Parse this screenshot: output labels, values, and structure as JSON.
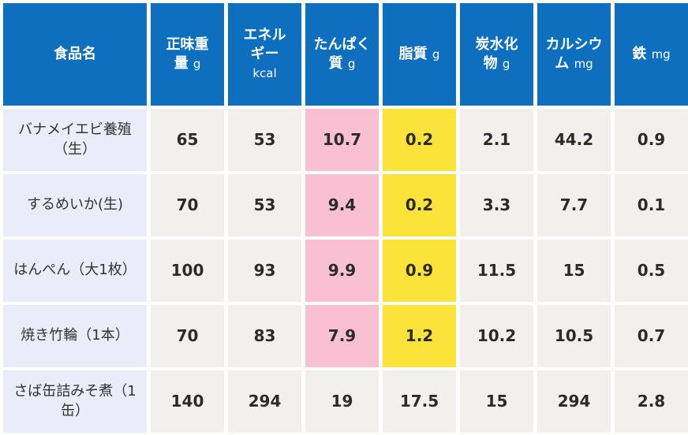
{
  "headers": [
    {
      "main": "食品名",
      "unit": ""
    },
    {
      "main": "正味重量",
      "unit": "g"
    },
    {
      "main": "エネルギー",
      "unit": "kcal"
    },
    {
      "main": "たんぱく質",
      "unit": "g"
    },
    {
      "main": "脂質",
      "unit": "g"
    },
    {
      "main": "炭水化物",
      "unit": "g"
    },
    {
      "main": "カルシウム",
      "unit": "mg"
    },
    {
      "main": "鉄",
      "unit": "mg"
    }
  ],
  "rows": [
    {
      "name": "バナメイエビ養殖（生）",
      "values": [
        "65",
        "53",
        "10.7",
        "0.2",
        "2.1",
        "44.2",
        "0.9"
      ]
    },
    {
      "name": "するめいか(生)",
      "values": [
        "70",
        "53",
        "9.4",
        "0.2",
        "3.3",
        "7.7",
        "0.1"
      ]
    },
    {
      "name": "はんぺん（大1枚）",
      "values": [
        "100",
        "93",
        "9.9",
        "0.9",
        "11.5",
        "15",
        "0.5"
      ]
    },
    {
      "name": "焼き竹輪（1本）",
      "values": [
        "70",
        "83",
        "7.9",
        "1.2",
        "10.2",
        "10.5",
        "0.7"
      ]
    },
    {
      "name": "さば缶詰みそ煮（1缶）",
      "values": [
        "140",
        "294",
        "19",
        "17.5",
        "15",
        "294",
        "2.8"
      ]
    }
  ],
  "highlight_colors": {
    "protein": "#f9bfd3",
    "fat": "#fbe33a",
    "header": "#0e6fbe"
  }
}
